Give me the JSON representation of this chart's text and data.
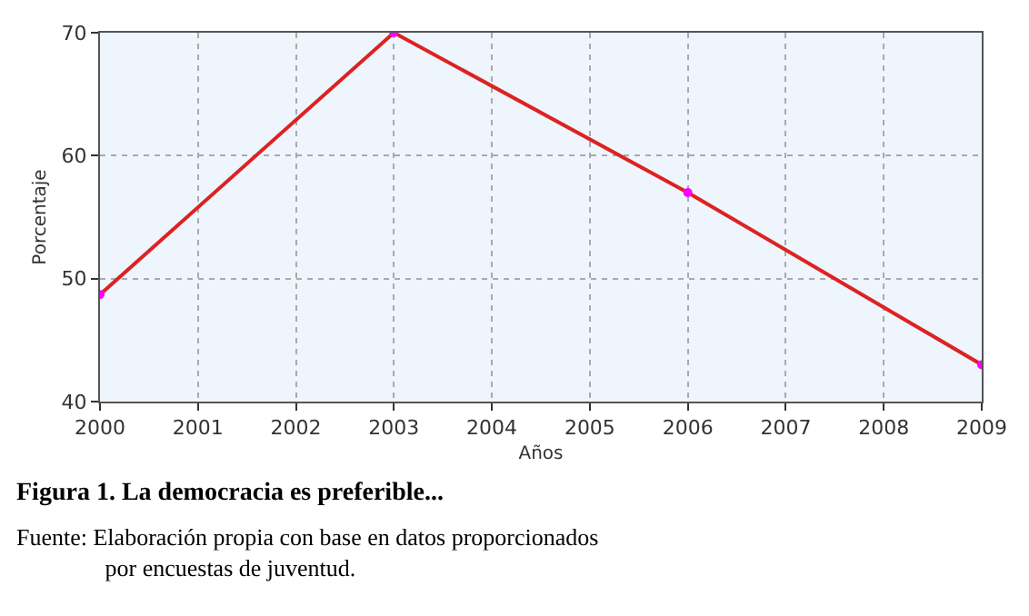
{
  "chart_data": {
    "type": "line",
    "title": "Figura 1. La democracia es preferible...",
    "xlabel": "Años",
    "ylabel": "Porcentaje",
    "x": [
      2000,
      2003,
      2006,
      2009
    ],
    "series": [
      {
        "color": "#dd2222",
        "colors": [
          "#ff00ff",
          "#ff00ff",
          "#ff00ff",
          "#ff00ff"
        ],
        "values": [
          48.7,
          70,
          57,
          43
        ]
      }
    ],
    "marker": "circle",
    "line_style": "solid",
    "xlim": [
      2000,
      2009
    ],
    "xticks": [
      2000,
      2001,
      2002,
      2003,
      2004,
      2005,
      2006,
      2007,
      2008,
      2009
    ],
    "ylim": [
      40,
      70
    ],
    "yticks": [
      40,
      50,
      60,
      70
    ],
    "grid": true,
    "annotations": [
      "Fuente: Elaboración propia con base en datos proporcionados\npor encuestas de juventud."
    ]
  }
}
